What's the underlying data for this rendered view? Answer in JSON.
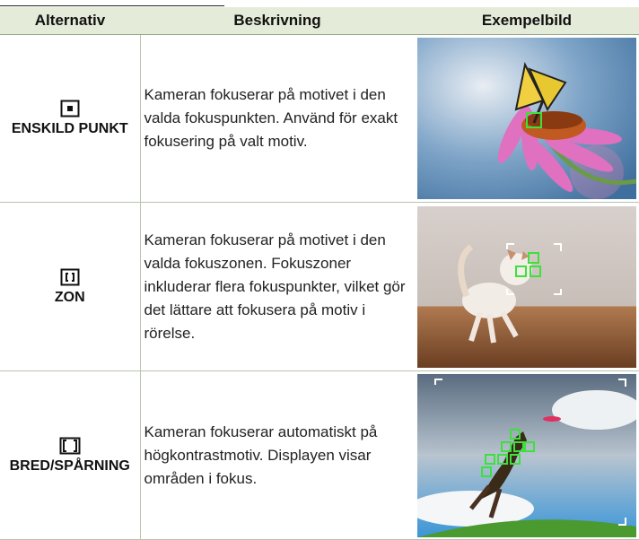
{
  "table": {
    "header": [
      "Alternativ",
      "Beskrivning",
      "Exempelbild"
    ],
    "rows": [
      [
        "ENSKILD PUNKT",
        "Kameran fokuserar på motivet i den valda fokuspunkten. Använd för exakt fokusering på valt motiv."
      ],
      [
        "ZON",
        "Kameran fokuserar på motivet i den valda fokuszonen. Fokuszoner inkluderar flera fokuspunkter, vilket gör det lättare att fokusera på motiv i rörelse."
      ],
      [
        "BRED/SPÅRNING",
        "Kameran fokuserar automatiskt på högkontrastmotiv. Displayen visar områden i fokus."
      ]
    ]
  }
}
